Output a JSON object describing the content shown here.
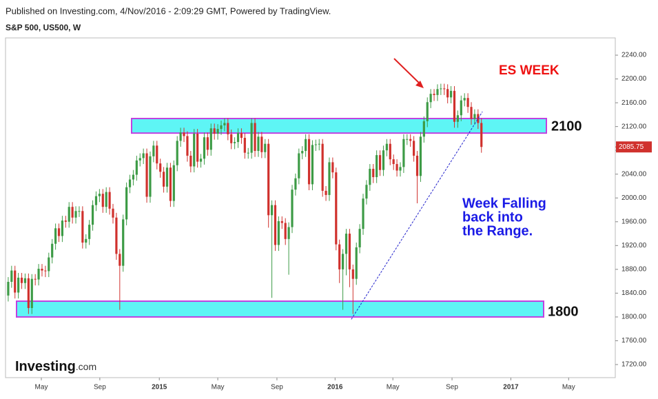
{
  "chart_data": {
    "type": "candlestick",
    "source": "Published on Investing.com, 4/Nov/2016 - 2:09:29 GMT, Powered by TradingView.",
    "title": "S&P 500, US500, W",
    "brand": "Investing",
    "brand_suffix": ".com",
    "up_color": "#3d9b46",
    "down_color": "#d0312d",
    "xlim": [
      -0.8,
      179.6
    ],
    "xticks": [
      {
        "value": 9.8,
        "label": "May"
      },
      {
        "value": 27.1,
        "label": "Sep"
      },
      {
        "value": 44.7,
        "label": "2015"
      },
      {
        "value": 62.0,
        "label": "May"
      },
      {
        "value": 79.5,
        "label": "Sep"
      },
      {
        "value": 96.7,
        "label": "2016"
      },
      {
        "value": 113.8,
        "label": "May"
      },
      {
        "value": 131.3,
        "label": "Sep"
      },
      {
        "value": 148.7,
        "label": "2017"
      },
      {
        "value": 165.8,
        "label": "May"
      }
    ],
    "ylim": [
      1698,
      2269
    ],
    "yticks": [
      {
        "value": 1720,
        "label": "1720.00"
      },
      {
        "value": 1760,
        "label": "1760.00"
      },
      {
        "value": 1800,
        "label": "1800.00"
      },
      {
        "value": 1840,
        "label": "1840.00"
      },
      {
        "value": 1880,
        "label": "1880.00"
      },
      {
        "value": 1920,
        "label": "1920.00"
      },
      {
        "value": 1960,
        "label": "1960.00"
      },
      {
        "value": 2000,
        "label": "2000.00"
      },
      {
        "value": 2040,
        "label": "2040.00"
      },
      {
        "value": 2080,
        "label": "2080.00"
      },
      {
        "value": 2120,
        "label": "2120.00"
      },
      {
        "value": 2160,
        "label": "2160.00"
      },
      {
        "value": 2200,
        "label": "2200.00"
      },
      {
        "value": 2240,
        "label": "2240.00"
      }
    ],
    "last_price": 2085.75,
    "open": [
      1836,
      1859,
      1878,
      1841,
      1866,
      1857,
      1865,
      1815,
      1864,
      1863,
      1881,
      1878,
      1877,
      1900,
      1923,
      1949,
      1936,
      1962,
      1960,
      1985,
      1967,
      1978,
      1978,
      1925,
      1931,
      1955,
      1988,
      2003,
      2007,
      1985,
      2010,
      1982,
      1967,
      1906,
      1886,
      1964,
      2018,
      2031,
      2039,
      2063,
      2067,
      2075,
      2002,
      2070,
      2088,
      2058,
      2044,
      2019,
      2051,
      1995,
      2055,
      2096,
      2110,
      2104,
      2071,
      2053,
      2108,
      2061,
      2066,
      2102,
      2081,
      2117,
      2108,
      2116,
      2122,
      2126,
      2107,
      2092,
      2094,
      2109,
      2101,
      2076,
      2076,
      2126,
      2079,
      2103,
      2077,
      2091,
      1971,
      1988,
      1921,
      1961,
      1958,
      1931,
      1951,
      2014,
      2033,
      2075,
      2079,
      2099,
      2023,
      2089,
      2090,
      2091,
      2012,
      2005,
      2060,
      2043,
      1922,
      1880,
      1906,
      1940,
      1880,
      1864,
      1917,
      1948,
      1999,
      2022,
      2049,
      2035,
      2072,
      2047,
      2080,
      2091,
      2065,
      2057,
      2046,
      2052,
      2099,
      2099,
      2096,
      2071,
      2037,
      2103,
      2129,
      2161,
      2175,
      2173,
      2183,
      2184,
      2183,
      2169,
      2180,
      2128,
      2139,
      2164,
      2168,
      2153,
      2133,
      2141,
      2126
    ],
    "high": [
      1867,
      1886,
      1886,
      1874,
      1874,
      1873,
      1873,
      1872,
      1872,
      1889,
      1889,
      1886,
      1908,
      1931,
      1957,
      1957,
      1970,
      1970,
      1993,
      1993,
      1986,
      1986,
      1986,
      1939,
      1963,
      1996,
      2011,
      2015,
      2015,
      2018,
      2018,
      1990,
      1975,
      1914,
      1972,
      2026,
      2039,
      2047,
      2071,
      2075,
      2083,
      2083,
      2078,
      2096,
      2096,
      2066,
      2052,
      2059,
      2059,
      2063,
      2104,
      2118,
      2118,
      2112,
      2079,
      2116,
      2116,
      2074,
      2110,
      2110,
      2125,
      2125,
      2124,
      2130,
      2134,
      2134,
      2115,
      2102,
      2117,
      2117,
      2109,
      2084,
      2134,
      2134,
      2111,
      2111,
      2099,
      2099,
      1996,
      1996,
      1969,
      1969,
      1966,
      1959,
      2022,
      2041,
      2083,
      2087,
      2107,
      2107,
      2097,
      2098,
      2099,
      2099,
      2020,
      2068,
      2068,
      2051,
      1930,
      1914,
      1948,
      1948,
      1888,
      1925,
      1956,
      2007,
      2030,
      2057,
      2057,
      2080,
      2080,
      2088,
      2099,
      2099,
      2073,
      2065,
      2060,
      2107,
      2107,
      2107,
      2104,
      2079,
      2111,
      2137,
      2169,
      2183,
      2183,
      2191,
      2192,
      2192,
      2191,
      2188,
      2188,
      2147,
      2172,
      2176,
      2176,
      2161,
      2149,
      2149,
      2134
    ],
    "low": [
      1826,
      1849,
      1831,
      1831,
      1847,
      1847,
      1805,
      1805,
      1853,
      1853,
      1868,
      1867,
      1867,
      1890,
      1913,
      1926,
      1926,
      1950,
      1950,
      1957,
      1957,
      1968,
      1915,
      1915,
      1921,
      1945,
      1978,
      1993,
      1975,
      1975,
      1972,
      1957,
      1896,
      1812,
      1876,
      1954,
      2008,
      2021,
      2029,
      2053,
      2057,
      1992,
      1992,
      2060,
      2048,
      2034,
      2009,
      2009,
      1985,
      1985,
      2045,
      2086,
      2094,
      2061,
      2043,
      2043,
      2051,
      2051,
      2056,
      2071,
      2071,
      2098,
      2098,
      2106,
      2112,
      2097,
      2082,
      2082,
      2084,
      2091,
      2066,
      2066,
      2066,
      2069,
      2069,
      2067,
      2067,
      1950,
      1832,
      1911,
      1911,
      1948,
      1921,
      1871,
      1941,
      2004,
      2023,
      2065,
      2069,
      2013,
      2013,
      2079,
      2080,
      2002,
      1995,
      1995,
      2033,
      1912,
      1857,
      1812,
      1870,
      1850,
      1805,
      1854,
      1907,
      1938,
      1989,
      2012,
      2025,
      2025,
      2037,
      2037,
      2070,
      2055,
      2047,
      2036,
      2036,
      2042,
      2089,
      2086,
      2061,
      1991,
      2027,
      2093,
      2119,
      2151,
      2163,
      2163,
      2173,
      2173,
      2159,
      2159,
      2118,
      2118,
      2129,
      2154,
      2143,
      2123,
      2123,
      2116,
      2076
    ],
    "close": [
      1859,
      1878,
      1841,
      1866,
      1857,
      1865,
      1815,
      1864,
      1863,
      1881,
      1878,
      1877,
      1900,
      1923,
      1949,
      1936,
      1962,
      1960,
      1985,
      1967,
      1978,
      1978,
      1925,
      1931,
      1955,
      1988,
      2003,
      2007,
      1985,
      2010,
      1982,
      1967,
      1906,
      1886,
      1964,
      2018,
      2031,
      2039,
      2063,
      2067,
      2075,
      2002,
      2070,
      2088,
      2058,
      2044,
      2019,
      2051,
      1995,
      2055,
      2096,
      2110,
      2104,
      2071,
      2053,
      2108,
      2061,
      2066,
      2102,
      2081,
      2117,
      2108,
      2116,
      2122,
      2126,
      2107,
      2092,
      2094,
      2109,
      2101,
      2076,
      2076,
      2126,
      2079,
      2103,
      2077,
      2091,
      1971,
      1988,
      1921,
      1961,
      1958,
      1931,
      1951,
      2014,
      2033,
      2075,
      2079,
      2099,
      2023,
      2089,
      2090,
      2091,
      2012,
      2005,
      2060,
      2043,
      1922,
      1880,
      1906,
      1940,
      1880,
      1864,
      1917,
      1948,
      1999,
      2022,
      2049,
      2035,
      2072,
      2047,
      2080,
      2091,
      2065,
      2057,
      2046,
      2052,
      2099,
      2099,
      2096,
      2071,
      2037,
      2103,
      2129,
      2161,
      2175,
      2173,
      2183,
      2184,
      2183,
      2169,
      2180,
      2128,
      2139,
      2164,
      2168,
      2153,
      2133,
      2141,
      2126,
      2085.75
    ],
    "zones": [
      {
        "label": "2100",
        "from": 2109,
        "to": 2133.5
      },
      {
        "label": "1800",
        "from": 1800,
        "to": 1826.5
      }
    ],
    "trendline": {
      "x": [
        101.5,
        140.3
      ],
      "y": [
        1796,
        2145
      ]
    },
    "annotations": {
      "headline": "ES WEEK",
      "note": [
        "Week Falling",
        "back into",
        "the Range."
      ]
    }
  }
}
